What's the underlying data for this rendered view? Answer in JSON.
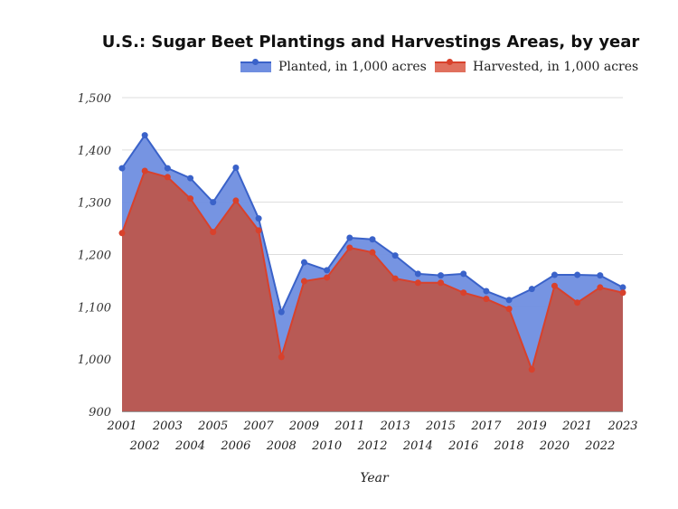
{
  "chart_data": {
    "type": "area",
    "title": "U.S.: Sugar Beet Plantings and Harvestings Areas, by year",
    "xlabel": "Year",
    "ylabel": "",
    "ylim": [
      900,
      1500
    ],
    "yticks": [
      "900",
      "1,000",
      "1,100",
      "1,200",
      "1,300",
      "1,400",
      "1,500"
    ],
    "grid": true,
    "legend_position": "top-right",
    "x": [
      2001,
      2002,
      2003,
      2004,
      2005,
      2006,
      2007,
      2008,
      2009,
      2010,
      2011,
      2012,
      2013,
      2014,
      2015,
      2016,
      2017,
      2018,
      2019,
      2020,
      2021,
      2022,
      2023
    ],
    "series": [
      {
        "name": "Planted, in 1,000 acres",
        "color": "#3a62c9",
        "fill": "#6f8ee0",
        "values": [
          1365,
          1428,
          1365,
          1346,
          1300,
          1366,
          1269,
          1090,
          1185,
          1170,
          1232,
          1229,
          1198,
          1163,
          1160,
          1163,
          1130,
          1113,
          1134,
          1161,
          1161,
          1160,
          1137
        ]
      },
      {
        "name": "Harvested, in 1,000 acres",
        "color": "#d8412c",
        "fill": "#b85a55",
        "values": [
          1241,
          1360,
          1348,
          1307,
          1243,
          1303,
          1246,
          1004,
          1149,
          1156,
          1213,
          1204,
          1154,
          1146,
          1146,
          1127,
          1115,
          1096,
          980,
          1140,
          1108,
          1137,
          1127
        ]
      }
    ]
  }
}
